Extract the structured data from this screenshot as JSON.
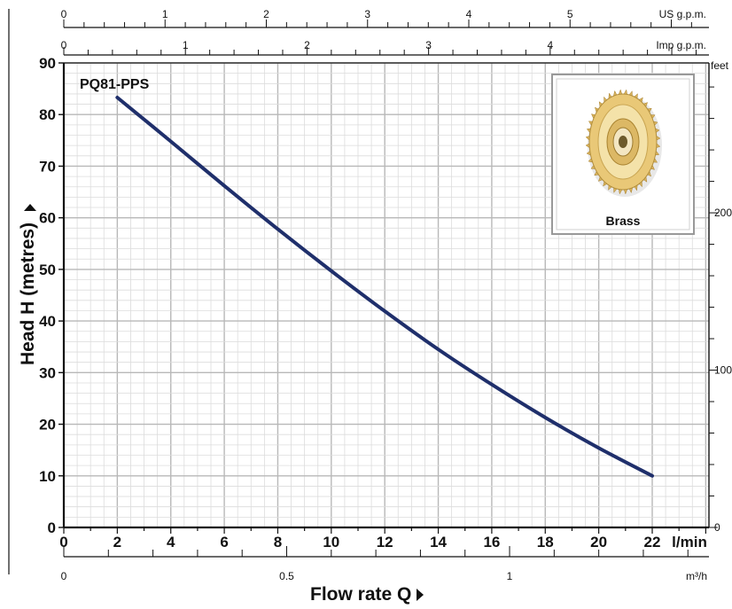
{
  "chart_data": {
    "type": "line",
    "series_label": "PQ81-PPS",
    "xlabel": "Flow rate Q",
    "ylabel": "Head H (metres)",
    "x_unit": "l/min",
    "xlim": [
      0,
      24
    ],
    "ylim": [
      0,
      90
    ],
    "x_ticks": [
      0,
      2,
      4,
      6,
      8,
      10,
      12,
      14,
      16,
      18,
      20,
      22
    ],
    "y_ticks": [
      0,
      10,
      20,
      30,
      40,
      50,
      60,
      70,
      80,
      90
    ],
    "series": [
      {
        "name": "PQ81-PPS",
        "color": "#1f2f6b",
        "x": [
          2,
          4,
          6,
          8,
          10,
          12,
          14,
          16,
          18,
          20,
          22
        ],
        "y": [
          83.3,
          74.8,
          66.2,
          57.8,
          49.7,
          41.9,
          34.5,
          27.7,
          21.3,
          15.4,
          10
        ]
      }
    ],
    "top_axes": [
      {
        "unit": "US g.p.m.",
        "ticks": [
          "0",
          "1",
          "2",
          "3",
          "4",
          "5"
        ],
        "values": [
          0,
          1,
          2,
          3,
          4,
          5
        ]
      },
      {
        "unit": "Imp g.p.m.",
        "ticks": [
          "0",
          "1",
          "2",
          "3",
          "4"
        ],
        "values": [
          0,
          1,
          2,
          3,
          4
        ]
      }
    ],
    "bottom_secondary_axis": {
      "unit": "m³/h",
      "ticks": [
        "0",
        "0.5",
        "1"
      ],
      "values": [
        0,
        0.5,
        1
      ]
    },
    "right_axis": {
      "unit": "feet",
      "ticks": [
        "0",
        "100",
        "200"
      ],
      "values": [
        0,
        100,
        200
      ]
    },
    "inset": {
      "label": "Brass"
    },
    "grid": true
  }
}
